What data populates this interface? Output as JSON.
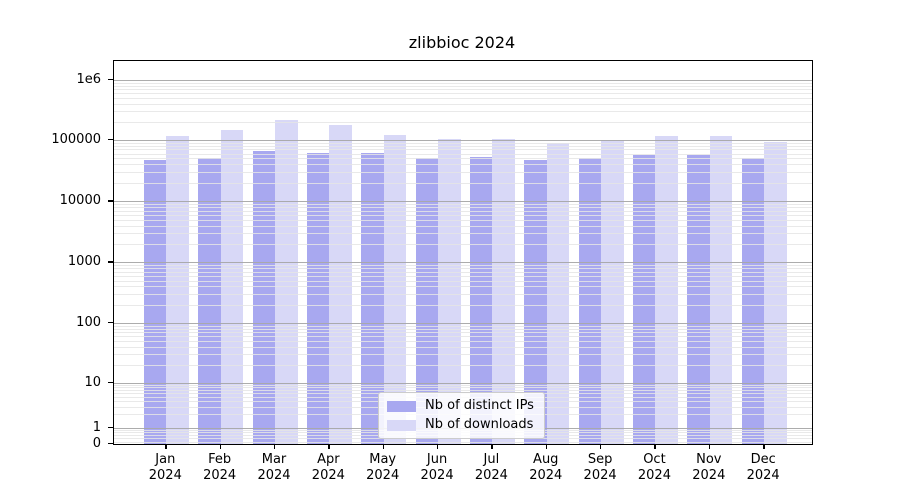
{
  "title": "zlibbioc 2024",
  "chart_data": {
    "type": "bar",
    "title": "zlibbioc 2024",
    "yscale": "log",
    "grid": "on",
    "legend_position": "bottom-center",
    "categories": [
      "Jan",
      "Feb",
      "Mar",
      "Apr",
      "May",
      "Jun",
      "Jul",
      "Aug",
      "Sep",
      "Oct",
      "Nov",
      "Dec"
    ],
    "year": "2024",
    "series": [
      {
        "name": "Nb of distinct IPs",
        "color": "#a8a8f0",
        "values": [
          48000,
          51000,
          65000,
          62000,
          62000,
          51000,
          53000,
          47000,
          50000,
          57000,
          57000,
          50000
        ]
      },
      {
        "name": "Nb of downloads",
        "color": "#d8d8f7",
        "values": [
          116000,
          146000,
          213000,
          176000,
          121000,
          102000,
          105000,
          90000,
          101000,
          115000,
          115000,
          92000
        ]
      }
    ],
    "y_ticks": [
      {
        "label": "0",
        "value": 0
      },
      {
        "label": "1",
        "value": 1
      },
      {
        "label": "10",
        "value": 10
      },
      {
        "label": "100",
        "value": 100
      },
      {
        "label": "1000",
        "value": 1000
      },
      {
        "label": "10000",
        "value": 10000
      },
      {
        "label": "100000",
        "value": 100000
      },
      {
        "label": "1e6",
        "value": 1000000
      }
    ],
    "ylim": [
      0,
      2000000
    ]
  },
  "legend": {
    "items": [
      {
        "label": "Nb of distinct IPs"
      },
      {
        "label": "Nb of downloads"
      }
    ]
  },
  "colors": {
    "distinct_ips": "#a8a8f0",
    "downloads": "#d8d8f7",
    "major_grid": "#a8a8a8",
    "minor_grid": "#e5e5e5"
  }
}
